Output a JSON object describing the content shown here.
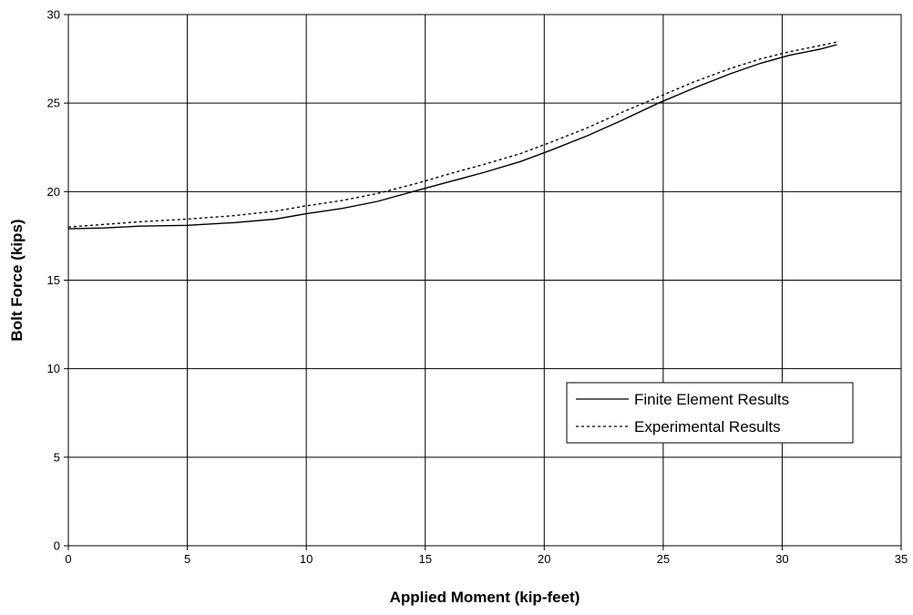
{
  "chart_data": {
    "type": "line",
    "title": "",
    "xlabel": "Applied Moment (kip-feet)",
    "ylabel": "Bolt  Force (kips)",
    "xlim": [
      0,
      35
    ],
    "ylim": [
      0,
      30
    ],
    "x_ticks": [
      0,
      5,
      10,
      15,
      20,
      25,
      30,
      35
    ],
    "y_ticks": [
      0,
      5,
      10,
      15,
      20,
      25,
      30
    ],
    "grid": true,
    "legend_position": "center-right",
    "series": [
      {
        "name": "Finite Element Results",
        "style": "solid",
        "color": "#000000",
        "x": [
          0,
          1.5,
          3,
          5,
          7,
          8.7,
          10,
          11.5,
          13,
          14.6,
          16,
          17.5,
          19,
          20.3,
          21.8,
          23.3,
          24.8,
          26.3,
          27.8,
          29.1,
          30.3,
          31.6,
          32.3
        ],
        "y": [
          17.9,
          17.95,
          18.05,
          18.1,
          18.25,
          18.45,
          18.75,
          19.05,
          19.45,
          20.05,
          20.55,
          21.1,
          21.7,
          22.35,
          23.15,
          24.05,
          25.0,
          25.85,
          26.65,
          27.25,
          27.7,
          28.05,
          28.3
        ]
      },
      {
        "name": "Experimental Results",
        "style": "dashed",
        "color": "#000000",
        "x": [
          0,
          1.5,
          3,
          5,
          7,
          8.7,
          10,
          11.5,
          13,
          14.6,
          16,
          17.5,
          19,
          20.3,
          21.8,
          23.3,
          24.8,
          26.3,
          27.8,
          29.1,
          30.3,
          31.6,
          32.3
        ],
        "y": [
          18.0,
          18.15,
          18.3,
          18.45,
          18.65,
          18.9,
          19.2,
          19.5,
          19.9,
          20.45,
          21.0,
          21.55,
          22.15,
          22.8,
          23.6,
          24.5,
          25.35,
          26.2,
          26.95,
          27.5,
          27.9,
          28.25,
          28.45
        ]
      }
    ]
  }
}
